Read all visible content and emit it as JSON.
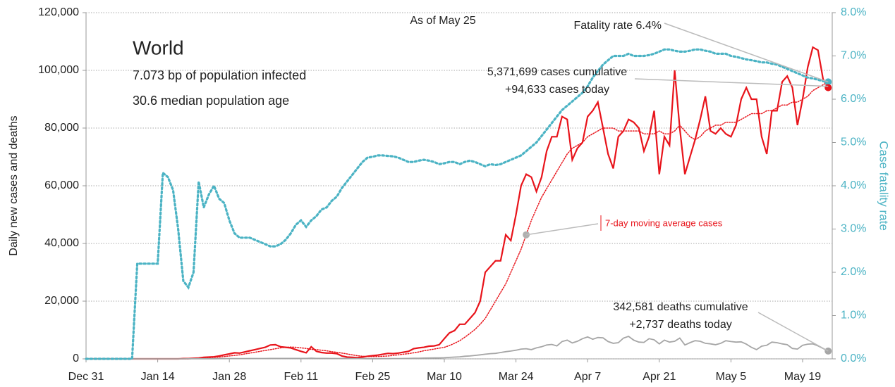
{
  "chart_data": {
    "type": "line",
    "title": "World",
    "subtitle": [
      "7.073 bp of population infected",
      "30.6 median population age"
    ],
    "annotations": [
      "As of May 25",
      "Fatality rate 6.4%",
      "5,371,699 cases cumulative",
      "+94,633 cases today",
      "342,581 deaths cumulative",
      "+2,737 deaths today"
    ],
    "y_label": "Daily new cases and deaths",
    "y2_label": "Case fatality rate",
    "categories": [
      "Dec 31",
      null,
      null,
      null,
      null,
      null,
      null,
      null,
      null,
      null,
      null,
      null,
      null,
      null,
      "Jan 14",
      null,
      null,
      null,
      null,
      null,
      null,
      null,
      null,
      null,
      null,
      null,
      null,
      null,
      "Jan 28",
      null,
      null,
      null,
      null,
      null,
      null,
      null,
      null,
      null,
      null,
      null,
      null,
      null,
      "Feb 11",
      null,
      null,
      null,
      null,
      null,
      null,
      null,
      null,
      null,
      null,
      null,
      null,
      null,
      "Feb 25",
      null,
      null,
      null,
      null,
      null,
      null,
      null,
      null,
      null,
      null,
      null,
      null,
      null,
      "Mar 10",
      null,
      null,
      null,
      null,
      null,
      null,
      null,
      null,
      null,
      null,
      null,
      null,
      null,
      "Mar 24",
      null,
      null,
      null,
      null,
      null,
      null,
      null,
      null,
      null,
      null,
      null,
      null,
      null,
      "Apr 7",
      null,
      null,
      null,
      null,
      null,
      null,
      null,
      null,
      null,
      null,
      null,
      null,
      null,
      "Apr 21",
      null,
      null,
      null,
      null,
      null,
      null,
      null,
      null,
      null,
      null,
      null,
      null,
      null,
      "May 5",
      null,
      null,
      null,
      null,
      null,
      null,
      null,
      null,
      null,
      null,
      null,
      null,
      null,
      "May 19",
      null,
      null,
      null,
      null,
      null
    ],
    "ylim": [
      0,
      120000
    ],
    "yticks": [
      0,
      {
        "value": 20000,
        "label": "20,000"
      },
      {
        "value": 40000,
        "label": "40,000"
      },
      {
        "value": 60000,
        "label": "60,000"
      },
      {
        "value": 80000,
        "label": "80,000"
      },
      {
        "value": 100000,
        "label": "100,000"
      },
      {
        "value": 120000,
        "label": "120,000"
      }
    ],
    "y2lim": [
      0,
      8
    ],
    "y2ticks": [
      {
        "value": 0,
        "label": "0.0%"
      },
      {
        "value": 1,
        "label": "1.0%"
      },
      {
        "value": 2,
        "label": "2.0%"
      },
      {
        "value": 3,
        "label": "3.0%"
      },
      {
        "value": 4,
        "label": "4.0%"
      },
      {
        "value": 5,
        "label": "5.0%"
      },
      {
        "value": 6,
        "label": "6.0%"
      },
      {
        "value": 7,
        "label": "7.0%"
      },
      {
        "value": 8,
        "label": "8.0%"
      }
    ],
    "grid": true,
    "series": [
      {
        "color": "#e8141b",
        "line_style": "solid",
        "values": [
          0,
          0,
          0,
          0,
          0,
          0,
          0,
          0,
          0,
          0,
          0,
          0,
          0,
          0,
          0,
          0,
          0,
          0,
          0,
          100,
          100,
          200,
          300,
          500,
          600,
          700,
          1000,
          1400,
          1700,
          2100,
          2000,
          2400,
          2800,
          3200,
          3600,
          4000,
          4800,
          4900,
          4200,
          4000,
          3800,
          3200,
          2600,
          2100,
          4200,
          2600,
          2200,
          2000,
          2000,
          1800,
          1000,
          600,
          500,
          400,
          600,
          900,
          1100,
          1300,
          1600,
          1900,
          1800,
          2000,
          2300,
          2600,
          3500,
          3800,
          4000,
          4400,
          4500,
          4900,
          7000,
          9000,
          9800,
          12000,
          12000,
          14000,
          16000,
          20000,
          30000,
          32000,
          34000,
          34000,
          43000,
          41000,
          50000,
          60000,
          64000,
          63000,
          58000,
          63000,
          72000,
          77000,
          77000,
          84000,
          83000,
          69000,
          73000,
          75000,
          84000,
          86000,
          89000,
          80000,
          71000,
          66000,
          77000,
          79000,
          83000,
          82000,
          80000,
          72000,
          77000,
          86000,
          64000,
          77000,
          74000,
          100000,
          80000,
          64000,
          70000,
          76000,
          83000,
          91000,
          79000,
          78000,
          80000,
          78000,
          77000,
          81000,
          90000,
          94000,
          90000,
          90000,
          77000,
          71000,
          86000,
          86000,
          96000,
          98000,
          94000,
          81000,
          90000,
          101000,
          108000,
          107000,
          97000,
          94000
        ]
      },
      {
        "name": "7-day moving average cases",
        "color": "#e8141b",
        "line_style": "dotted",
        "values": [
          0,
          0,
          0,
          0,
          0,
          0,
          0,
          0,
          0,
          0,
          0,
          0,
          0,
          0,
          0,
          0,
          0,
          0,
          0,
          0,
          0,
          100,
          200,
          300,
          400,
          500,
          600,
          800,
          1000,
          1200,
          1400,
          1700,
          2000,
          2300,
          2600,
          2900,
          3200,
          3500,
          3800,
          4000,
          4100,
          4000,
          3800,
          3600,
          3300,
          3200,
          3000,
          2800,
          2500,
          2300,
          2000,
          1700,
          1400,
          1100,
          900,
          800,
          800,
          800,
          900,
          1000,
          1200,
          1400,
          1600,
          1800,
          2100,
          2400,
          2800,
          3100,
          3400,
          3700,
          4000,
          4600,
          5400,
          6300,
          7500,
          8800,
          10200,
          12000,
          14000,
          17000,
          20000,
          23000,
          26000,
          30000,
          34000,
          38000,
          43000,
          48000,
          52000,
          56000,
          59000,
          62000,
          65000,
          68000,
          71000,
          73000,
          74000,
          75000,
          77000,
          78000,
          79000,
          80000,
          80000,
          80000,
          79000,
          79000,
          79000,
          79000,
          79000,
          78000,
          78000,
          78000,
          79000,
          78000,
          78000,
          79000,
          81000,
          79000,
          77000,
          76000,
          77000,
          79000,
          80000,
          81000,
          81000,
          82000,
          82000,
          82000,
          83000,
          84000,
          85000,
          85000,
          85000,
          86000,
          86000,
          87000,
          88000,
          88000,
          89000,
          89000,
          90000,
          91000,
          93000,
          94000,
          95000,
          96000
        ]
      },
      {
        "color": "#a6a6a6",
        "line_style": "solid",
        "values": [
          0,
          0,
          0,
          0,
          0,
          0,
          0,
          0,
          0,
          0,
          0,
          0,
          0,
          0,
          0,
          0,
          0,
          0,
          0,
          10,
          20,
          30,
          40,
          40,
          50,
          60,
          70,
          80,
          90,
          100,
          100,
          100,
          110,
          110,
          120,
          130,
          140,
          140,
          150,
          150,
          140,
          140,
          140,
          150,
          250,
          150,
          140,
          140,
          130,
          130,
          120,
          110,
          100,
          90,
          80,
          60,
          60,
          60,
          70,
          80,
          90,
          100,
          120,
          150,
          200,
          230,
          260,
          300,
          320,
          350,
          400,
          500,
          600,
          700,
          900,
          1000,
          1200,
          1400,
          1600,
          1800,
          1900,
          2200,
          2500,
          2700,
          3000,
          3400,
          3500,
          3200,
          3800,
          4200,
          4800,
          5000,
          4500,
          6000,
          6500,
          5500,
          6100,
          7000,
          7600,
          6800,
          7400,
          7300,
          6000,
          5400,
          5600,
          7200,
          7800,
          6500,
          5800,
          5700,
          7000,
          6600,
          5200,
          6500,
          5800,
          6100,
          7200,
          4800,
          5600,
          6300,
          6100,
          5400,
          5200,
          4900,
          5400,
          6300,
          6000,
          5800,
          5900,
          5100,
          4000,
          3200,
          4400,
          4700,
          5800,
          5600,
          5200,
          4900,
          3600,
          3400,
          4700,
          5100,
          5200,
          4500,
          3600,
          2700
        ]
      },
      {
        "color": "#4bb3c4",
        "line_style": "dotted",
        "axis": "y2",
        "values": [
          0,
          0,
          0,
          0,
          0,
          0,
          0,
          0,
          0,
          0,
          2.2,
          2.2,
          2.2,
          2.2,
          2.2,
          4.3,
          4.2,
          3.9,
          3.0,
          1.8,
          1.65,
          2.0,
          4.1,
          3.5,
          3.8,
          4.0,
          3.7,
          3.6,
          3.2,
          2.9,
          2.8,
          2.8,
          2.8,
          2.75,
          2.7,
          2.65,
          2.6,
          2.6,
          2.65,
          2.75,
          2.9,
          3.1,
          3.2,
          3.05,
          3.2,
          3.3,
          3.45,
          3.5,
          3.65,
          3.75,
          3.95,
          4.1,
          4.25,
          4.4,
          4.55,
          4.65,
          4.67,
          4.7,
          4.7,
          4.69,
          4.68,
          4.65,
          4.6,
          4.55,
          4.55,
          4.58,
          4.6,
          4.58,
          4.55,
          4.5,
          4.52,
          4.55,
          4.55,
          4.5,
          4.55,
          4.58,
          4.55,
          4.5,
          4.45,
          4.5,
          4.48,
          4.5,
          4.55,
          4.6,
          4.65,
          4.7,
          4.8,
          4.9,
          5.0,
          5.15,
          5.3,
          5.45,
          5.6,
          5.75,
          5.85,
          5.95,
          6.05,
          6.15,
          6.3,
          6.5,
          6.65,
          6.8,
          6.9,
          7.0,
          7.0,
          7.0,
          7.05,
          7.0,
          7.0,
          7.0,
          7.02,
          7.05,
          7.1,
          7.15,
          7.15,
          7.12,
          7.1,
          7.1,
          7.12,
          7.15,
          7.15,
          7.12,
          7.1,
          7.05,
          7.05,
          7.05,
          7.0,
          6.98,
          6.95,
          6.92,
          6.9,
          6.88,
          6.85,
          6.85,
          6.82,
          6.8,
          6.75,
          6.7,
          6.65,
          6.6,
          6.55,
          6.5,
          6.48,
          6.45,
          6.42,
          6.4
        ]
      }
    ]
  }
}
